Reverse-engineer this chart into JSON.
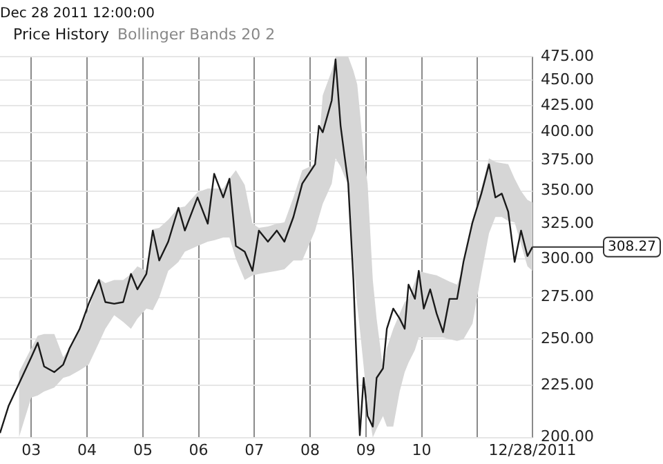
{
  "chart_data": {
    "type": "line",
    "subtitle": "Dec 28 2011 12:00:00",
    "log": "y",
    "grid": true,
    "legend": "top left",
    "marker": "none",
    "line_style": "solid",
    "annotations": [
      "Bollinger Bands 20 2",
      {
        "text": "308.27",
        "x": "2011-12-28",
        "y": 308.27
      }
    ],
    "xlim": [
      "2002-06-10",
      "2011-12-28"
    ],
    "xticks": [
      {
        "value": "2003-01-01",
        "label": "03"
      },
      {
        "value": "2004-01-01",
        "label": "04"
      },
      {
        "value": "2005-01-01",
        "label": "05"
      },
      {
        "value": "2006-01-01",
        "label": "06"
      },
      {
        "value": "2007-01-01",
        "label": "07"
      },
      {
        "value": "2008-01-01",
        "label": "08"
      },
      {
        "value": "2009-01-01",
        "label": "09"
      },
      {
        "value": "2010-01-01",
        "label": "10"
      },
      {
        "value": "2011-01-01",
        "label": null
      },
      {
        "value": "2011-12-28",
        "label": "12/28/2011"
      }
    ],
    "ylim": [
      200,
      475
    ],
    "yticks": [
      {
        "value": 200,
        "label": "200.00"
      },
      {
        "value": 225,
        "label": "225.00"
      },
      {
        "value": 250,
        "label": "250.00"
      },
      {
        "value": 275,
        "label": "275.00"
      },
      {
        "value": 300,
        "label": "300.00"
      },
      {
        "value": 325,
        "label": "325.00"
      },
      {
        "value": 350,
        "label": "350.00"
      },
      {
        "value": 375,
        "label": "375.00"
      },
      {
        "value": 400,
        "label": "400.00"
      },
      {
        "value": 425,
        "label": "425.00"
      },
      {
        "value": 450,
        "label": "450.00"
      },
      {
        "value": 475,
        "label": "475.00"
      }
    ],
    "x": [
      "2002-06-10",
      "2002-08-06",
      "2002-10-12",
      "2003-01-01",
      "2003-02-12",
      "2003-03-26",
      "2003-06-01",
      "2003-07-29",
      "2003-09-09",
      "2003-11-14",
      "2004-01-12",
      "2004-03-19",
      "2004-04-30",
      "2004-06-27",
      "2004-08-25",
      "2004-10-15",
      "2004-11-26",
      "2005-01-24",
      "2005-03-07",
      "2005-04-18",
      "2005-06-16",
      "2005-08-22",
      "2005-10-03",
      "2005-12-25",
      "2006-03-02",
      "2006-04-13",
      "2006-06-11",
      "2006-07-22",
      "2006-09-02",
      "2006-10-30",
      "2006-12-20",
      "2007-01-31",
      "2007-03-31",
      "2007-05-28",
      "2007-07-17",
      "2007-09-14",
      "2007-11-11",
      "2008-02-03",
      "2008-02-28",
      "2008-03-24",
      "2008-05-22",
      "2008-06-16",
      "2008-07-19",
      "2008-08-13",
      "2008-09-07",
      "2008-10-11",
      "2008-11-05",
      "2008-11-22",
      "2008-12-17",
      "2009-01-12",
      "2009-02-15",
      "2009-03-12",
      "2009-04-23",
      "2009-05-18",
      "2009-06-29",
      "2009-08-10",
      "2009-09-12",
      "2009-10-07",
      "2009-11-18",
      "2009-12-13",
      "2010-01-15",
      "2010-02-26",
      "2010-04-09",
      "2010-05-21",
      "2010-07-02",
      "2010-08-21",
      "2010-10-02",
      "2010-11-30",
      "2011-01-27",
      "2011-03-18",
      "2011-04-29",
      "2011-06-10",
      "2011-07-22",
      "2011-09-02",
      "2011-10-14",
      "2011-11-25",
      "2011-12-28"
    ],
    "series": [
      {
        "name": "Price History",
        "color": "#1a1a1a",
        "values": [
          202,
          215,
          226,
          240,
          248,
          235,
          232,
          236,
          245,
          256,
          271,
          286,
          272,
          271,
          272,
          290,
          280,
          290,
          320,
          299,
          312,
          337,
          320,
          345,
          325,
          364,
          345,
          360,
          309,
          305,
          292,
          320,
          312,
          320,
          312,
          330,
          356,
          372,
          406,
          400,
          430,
          472,
          406,
          380,
          356,
          286,
          229,
          201,
          229,
          210,
          205,
          229,
          234,
          256,
          268,
          262,
          256,
          283,
          274,
          292,
          268,
          280,
          265,
          254,
          274,
          274,
          298,
          326,
          348,
          372,
          345,
          348,
          334,
          298,
          320,
          302,
          308.27
        ],
        "upper": [
          null,
          null,
          232,
          245,
          252,
          253,
          253,
          240,
          245,
          256,
          268,
          287,
          284,
          286,
          286,
          290,
          295,
          292,
          321,
          322,
          328,
          337,
          338,
          349,
          352,
          352,
          352,
          360,
          367,
          355,
          325,
          322,
          323,
          325,
          326,
          345,
          367,
          372,
          390,
          435,
          460,
          475,
          475,
          475,
          475,
          460,
          446,
          420,
          380,
          356,
          286,
          262,
          234,
          245,
          256,
          265,
          272,
          274,
          285,
          292,
          291,
          290,
          289,
          287,
          285,
          283,
          295,
          326,
          352,
          377,
          374,
          373,
          372,
          360,
          350,
          343,
          341
        ],
        "lower": [
          null,
          null,
          200,
          219,
          220,
          222,
          224,
          229,
          230,
          233,
          236,
          248,
          256,
          264,
          260,
          256,
          262,
          268,
          267,
          275,
          292,
          298,
          305,
          309,
          312,
          313,
          315,
          315,
          300,
          286,
          289,
          290,
          291,
          292,
          293,
          299,
          299,
          320,
          330,
          340,
          356,
          377,
          370,
          362,
          356,
          300,
          270,
          256,
          235,
          215,
          200,
          204,
          210,
          205,
          205,
          222,
          232,
          237,
          244,
          251,
          251,
          251,
          251,
          251,
          250,
          249,
          250,
          259,
          290,
          318,
          330,
          330,
          327,
          326,
          310,
          295,
          292
        ]
      }
    ]
  }
}
